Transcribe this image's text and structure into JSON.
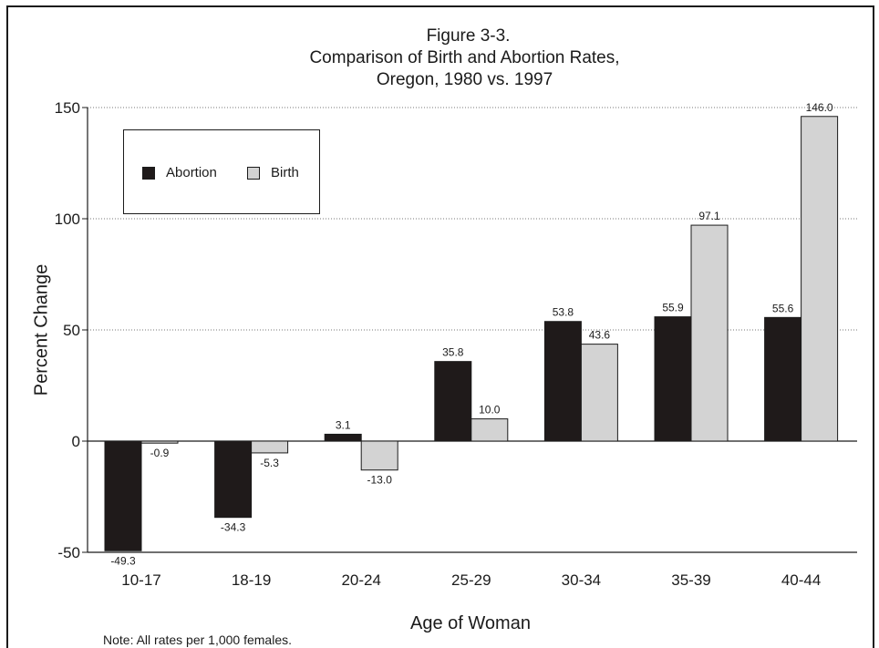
{
  "chart_data": {
    "type": "bar",
    "title_lines": [
      "Figure 3-3.",
      "Comparison of Birth and Abortion Rates,",
      "Oregon, 1980 vs. 1997"
    ],
    "xlabel": "Age of Woman",
    "ylabel": "Percent Change",
    "note": "Note:  All rates per 1,000 females.",
    "categories": [
      "10-17",
      "18-19",
      "20-24",
      "25-29",
      "30-34",
      "35-39",
      "40-44"
    ],
    "series": [
      {
        "name": "Abortion",
        "color": "#1f1a1a",
        "values": [
          -49.3,
          -34.3,
          3.1,
          35.8,
          53.8,
          55.9,
          55.6
        ],
        "labels": [
          "-49.3",
          "-34.3",
          "3.1",
          "35.8",
          "53.8",
          "55.9",
          "55.6"
        ]
      },
      {
        "name": "Birth",
        "color": "#d3d3d3",
        "values": [
          -0.9,
          -5.3,
          -13.0,
          10.0,
          43.6,
          97.1,
          146.0
        ],
        "labels": [
          "-0.9",
          "-5.3",
          "-13.0",
          "10.0",
          "43.6",
          "97.1",
          "146.0"
        ]
      }
    ],
    "ylim": [
      -50,
      150
    ],
    "yticks": [
      -50,
      0,
      50,
      100,
      150
    ],
    "ytick_labels": [
      "-50",
      "0",
      "50",
      "100",
      "150"
    ],
    "grid": true,
    "legend_position": "top-left"
  }
}
